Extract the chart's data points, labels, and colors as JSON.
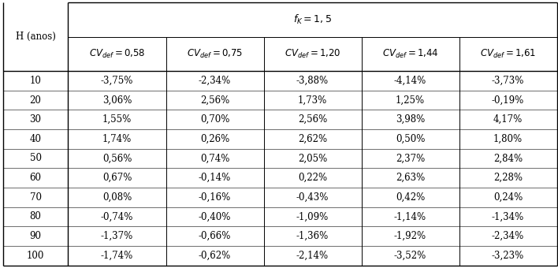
{
  "fk_header": "f$_K$ = 1,5",
  "col0_header": "H (anos)",
  "cv_headers": [
    "CV$_{def}$ = 0,58",
    "CV$_{def}$ = 0,75",
    "CV$_{def}$ = 1,20",
    "CV$_{def}$ = 1,44",
    "CV$_{def}$ = 1,61"
  ],
  "rows": [
    [
      "10",
      "-3,75%",
      "-2,34%",
      "-3,88%",
      "-4,14%",
      "-3,73%"
    ],
    [
      "20",
      "3,06%",
      "2,56%",
      "1,73%",
      "1,25%",
      "-0,19%"
    ],
    [
      "30",
      "1,55%",
      "0,70%",
      "2,56%",
      "3,98%",
      "4,17%"
    ],
    [
      "40",
      "1,74%",
      "0,26%",
      "2,62%",
      "0,50%",
      "1,80%"
    ],
    [
      "50",
      "0,56%",
      "0,74%",
      "2,05%",
      "2,37%",
      "2,84%"
    ],
    [
      "60",
      "0,67%",
      "-0,14%",
      "0,22%",
      "2,63%",
      "2,28%"
    ],
    [
      "70",
      "0,08%",
      "-0,16%",
      "-0,43%",
      "0,42%",
      "0,24%"
    ],
    [
      "80",
      "-0,74%",
      "-0,40%",
      "-1,09%",
      "-1,14%",
      "-1,34%"
    ],
    [
      "90",
      "-1,37%",
      "-0,66%",
      "-1,36%",
      "-1,92%",
      "-2,34%"
    ],
    [
      "100",
      "-1,74%",
      "-0,62%",
      "-2,14%",
      "-3,52%",
      "-3,23%"
    ]
  ],
  "bg_color": "#ffffff",
  "line_color": "#000000",
  "font_size": 8.5,
  "figwidth": 7.08,
  "figheight": 3.4,
  "dpi": 100
}
